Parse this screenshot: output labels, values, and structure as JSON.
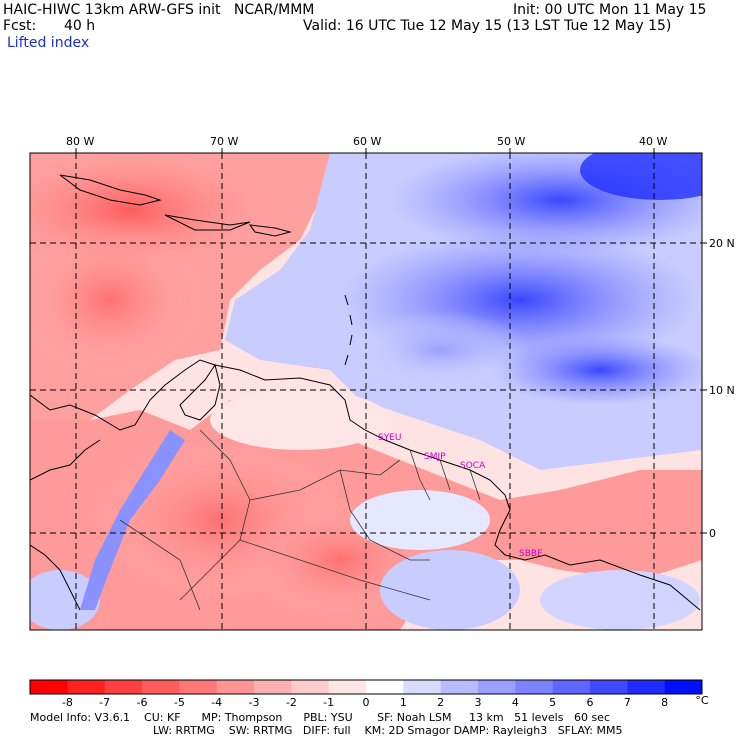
{
  "header": {
    "title": "HAIC-HIWC 13km ARW-GFS init   NCAR/MMM",
    "init": "Init: 00 UTC Mon 11 May 15",
    "fcst_label": "Fcst:",
    "fcst_value": "40 h",
    "valid": "Valid: 16 UTC Tue 12 May 15 (13 LST Tue 12 May 15)",
    "field": "Lifted index"
  },
  "map": {
    "lon_labels": [
      "80 W",
      "70 W",
      "60 W",
      "50 W",
      "40 W"
    ],
    "lat_labels": [
      "20 N",
      "10 N",
      "0"
    ],
    "stations": [
      "SYEU",
      "SMJP",
      "SOCA",
      "SBBE"
    ]
  },
  "colorbar": {
    "labels": [
      "-8",
      "-7",
      "-6",
      "-5",
      "-4",
      "-3",
      "-2",
      "-1",
      "0",
      "1",
      "2",
      "3",
      "4",
      "5",
      "6",
      "7",
      "8"
    ],
    "unit": "°C",
    "colors": [
      "#ff0000",
      "#ff2020",
      "#ff4040",
      "#ff5c5c",
      "#ff7878",
      "#ff9494",
      "#ffb0b0",
      "#ffcccc",
      "#ffe6e6",
      "#ffffff",
      "#d9dcff",
      "#b8bcff",
      "#9aa0ff",
      "#7c83ff",
      "#5e66ff",
      "#4049ff",
      "#202cff",
      "#0010ff"
    ]
  },
  "model_info": {
    "line1": "Model Info: V3.6.1    CU: KF      MP: Thompson      PBL: YSU       SF: Noah LSM     13 km   51 levels   60 sec",
    "line2": "LW: RRTMG    SW: RRTMG   DIFF: full    KM: 2D Smagor DAMP: Rayleigh3   SFLAY: MM5"
  }
}
